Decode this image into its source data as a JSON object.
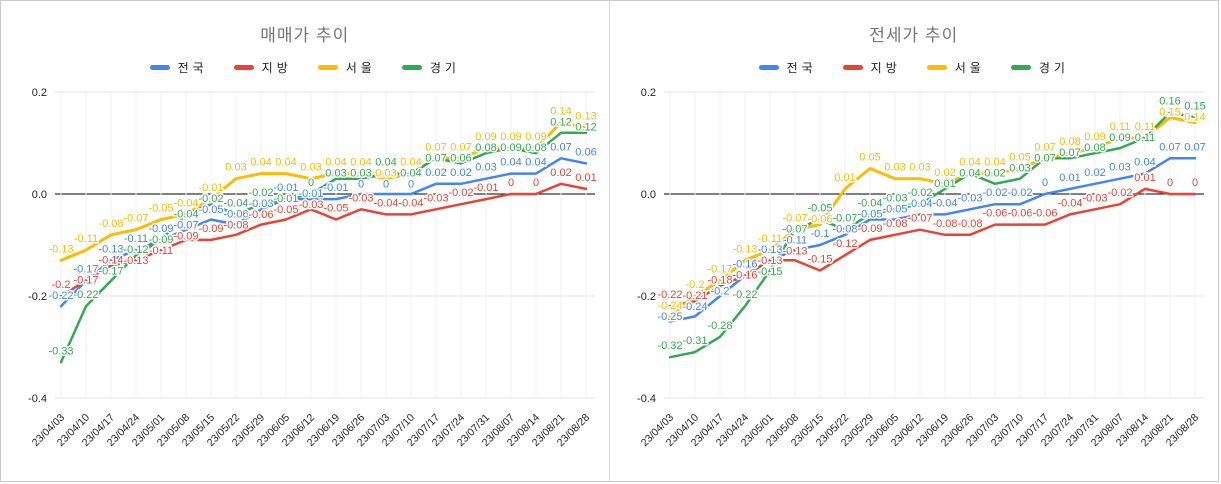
{
  "container": {
    "background": "#ffffff",
    "border_color": "#c9c9c9",
    "divider_color": "#d9d9d9"
  },
  "chart_data": [
    {
      "type": "line",
      "title": "매매가 추이",
      "title_color": "#757575",
      "legend_position": "top",
      "point_labels": true,
      "grid": true,
      "ylim": [
        -0.4,
        0.2
      ],
      "y_tick_labels": [
        "0.2",
        "0.0",
        "-0.2",
        "-0.4"
      ],
      "y_tick_values": [
        0.2,
        0.0,
        -0.2,
        -0.4
      ],
      "zero_line_color": "#000000",
      "categories": [
        "23/04/03",
        "23/04/10",
        "23/04/17",
        "23/04/24",
        "23/05/01",
        "23/05/08",
        "23/05/15",
        "23/05/22",
        "23/05/29",
        "23/06/05",
        "23/06/12",
        "23/06/19",
        "23/06/26",
        "23/07/03",
        "23/07/10",
        "23/07/17",
        "23/07/24",
        "23/07/31",
        "23/08/07",
        "23/08/14",
        "23/08/21",
        "23/08/28"
      ],
      "series": [
        {
          "name": "전국",
          "color": "#4285F4",
          "values": [
            -0.22,
            -0.17,
            -0.13,
            -0.11,
            -0.09,
            -0.07,
            -0.05,
            -0.06,
            -0.03,
            -0.01,
            -0.01,
            -0.01,
            0,
            0,
            0,
            0.02,
            0.02,
            0.03,
            0.04,
            0.04,
            0.07,
            0.06
          ]
        },
        {
          "name": "지방",
          "color": "#EA4335",
          "values": [
            -0.2,
            -0.17,
            -0.14,
            -0.13,
            -0.11,
            -0.09,
            -0.09,
            -0.08,
            -0.06,
            -0.05,
            -0.03,
            -0.05,
            -0.03,
            -0.04,
            -0.04,
            -0.03,
            -0.02,
            -0.01,
            0,
            0,
            0.02,
            0.01
          ]
        },
        {
          "name": "서울",
          "color": "#FBBC04",
          "values": [
            -0.13,
            -0.11,
            -0.08,
            -0.07,
            -0.05,
            -0.04,
            -0.01,
            0.03,
            0.04,
            0.04,
            0.03,
            0.04,
            0.04,
            0.03,
            0.04,
            0.07,
            0.07,
            0.09,
            0.09,
            0.09,
            0.14,
            0.13
          ]
        },
        {
          "name": "경기",
          "color": "#34A853",
          "values": [
            -0.33,
            -0.22,
            -0.17,
            -0.12,
            -0.09,
            -0.04,
            -0.02,
            -0.04,
            -0.02,
            -0.01,
            0,
            0.03,
            0.03,
            0.04,
            0.04,
            0.07,
            0.06,
            0.08,
            0.09,
            0.08,
            0.12,
            0.12
          ]
        }
      ]
    },
    {
      "type": "line",
      "title": "전세가 추이",
      "title_color": "#757575",
      "legend_position": "top",
      "point_labels": true,
      "grid": true,
      "ylim": [
        -0.4,
        0.2
      ],
      "y_tick_labels": [
        "0.2",
        "0.0",
        "-0.2",
        "-0.4"
      ],
      "y_tick_values": [
        0.2,
        0.0,
        -0.2,
        -0.4
      ],
      "zero_line_color": "#000000",
      "categories": [
        "23/04/03",
        "23/04/10",
        "23/04/17",
        "23/04/24",
        "23/05/01",
        "23/05/08",
        "23/05/15",
        "23/05/22",
        "23/05/29",
        "23/06/05",
        "23/06/12",
        "23/06/19",
        "23/06/26",
        "23/07/03",
        "23/07/10",
        "23/07/17",
        "23/07/24",
        "23/07/31",
        "23/08/07",
        "23/08/14",
        "23/08/21",
        "23/08/28"
      ],
      "series": [
        {
          "name": "전국",
          "color": "#4285F4",
          "values": [
            -0.25,
            -0.24,
            -0.2,
            -0.16,
            -0.13,
            -0.11,
            -0.1,
            -0.08,
            -0.05,
            -0.05,
            -0.04,
            -0.04,
            -0.03,
            -0.02,
            -0.02,
            0,
            0.01,
            0.02,
            0.03,
            0.04,
            0.07,
            0.07
          ]
        },
        {
          "name": "지방",
          "color": "#EA4335",
          "values": [
            -0.22,
            -0.21,
            -0.18,
            -0.16,
            -0.13,
            -0.13,
            -0.15,
            -0.12,
            -0.09,
            -0.08,
            -0.07,
            -0.08,
            -0.08,
            -0.06,
            -0.06,
            -0.06,
            -0.04,
            -0.03,
            -0.02,
            0.01,
            0,
            0
          ]
        },
        {
          "name": "서울",
          "color": "#FBBC04",
          "values": [
            -0.24,
            -0.2,
            -0.17,
            -0.13,
            -0.11,
            -0.07,
            -0.06,
            0.01,
            0.05,
            0.03,
            0.03,
            0.02,
            0.04,
            0.04,
            0.05,
            0.07,
            0.08,
            0.09,
            0.11,
            0.11,
            0.15,
            0.14
          ]
        },
        {
          "name": "경기",
          "color": "#34A853",
          "values": [
            -0.32,
            -0.31,
            -0.28,
            -0.22,
            -0.15,
            -0.07,
            -0.05,
            -0.07,
            -0.04,
            -0.03,
            -0.02,
            0.01,
            0.04,
            0.02,
            0.03,
            0.07,
            0.07,
            0.08,
            0.09,
            0.11,
            0.16,
            0.15
          ]
        }
      ]
    }
  ]
}
